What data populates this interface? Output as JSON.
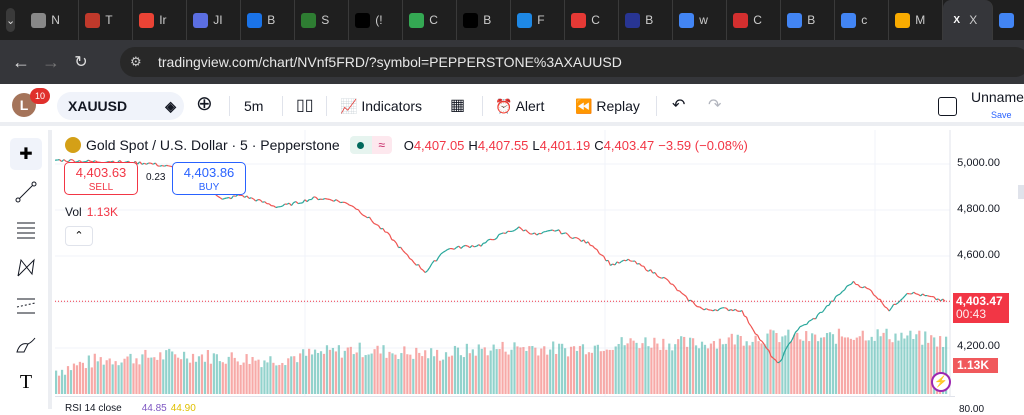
{
  "browser": {
    "tabs": [
      {
        "label": "N",
        "icon": "chrome-icon",
        "color": "#888"
      },
      {
        "label": "T",
        "icon": "t-icon",
        "color": "#c0392b"
      },
      {
        "label": "Ir",
        "icon": "gmail-icon",
        "color": "#ea4335"
      },
      {
        "label": "JI",
        "icon": "circle-icon",
        "color": "#5b6ee1"
      },
      {
        "label": "B",
        "icon": "b-icon",
        "color": "#1a73e8"
      },
      {
        "label": "S",
        "icon": "chart-icon",
        "color": "#2e7d32"
      },
      {
        "label": "(!",
        "icon": "x-icon",
        "color": "#000"
      },
      {
        "label": "C",
        "icon": "drive-icon",
        "color": "#34a853"
      },
      {
        "label": "B",
        "icon": "b-icon",
        "color": "#000"
      },
      {
        "label": "F",
        "icon": "globe-icon",
        "color": "#1e88e5"
      },
      {
        "label": "C",
        "icon": "a-icon",
        "color": "#e53935"
      },
      {
        "label": "B",
        "icon": "b-icon",
        "color": "#283593"
      },
      {
        "label": "w",
        "icon": "google-icon",
        "color": "#4285f4"
      },
      {
        "label": "C",
        "icon": "c-icon",
        "color": "#d32f2f"
      },
      {
        "label": "B",
        "icon": "google-icon",
        "color": "#4285f4"
      },
      {
        "label": "c",
        "icon": "google-icon",
        "color": "#4285f4"
      },
      {
        "label": "M",
        "icon": "analytics-icon",
        "color": "#f9ab00"
      },
      {
        "label": "X",
        "icon": "close-icon",
        "color": "#35363a",
        "active": true
      },
      {
        "label": "",
        "icon": "google-icon",
        "color": "#4285f4"
      }
    ],
    "url": "tradingview.com/chart/NVnf5FRD/?symbol=PEPPERSTONE%3AXAUUSD"
  },
  "toolbar": {
    "avatar": "L",
    "notifications": "10",
    "symbol": "XAUUSD",
    "interval": "5m",
    "indicators": "Indicators",
    "alert": "Alert",
    "replay": "Replay",
    "layout_name": "Unnamed",
    "save": "Save"
  },
  "legend": {
    "title": "Gold Spot / U.S. Dollar · 5 · Pepperstone",
    "o_label": "O",
    "o": "4,407.05",
    "h_label": "H",
    "h": "4,407.55",
    "l_label": "L",
    "l": "4,401.19",
    "c_label": "C",
    "c": "4,403.47",
    "change": "−3.59 (−0.08%)"
  },
  "trade": {
    "sell_price": "4,403.63",
    "sell": "SELL",
    "spread": "0.23",
    "buy_price": "4,403.86",
    "buy": "BUY"
  },
  "volume": {
    "label": "Vol",
    "value": "1.13K"
  },
  "price_scale": {
    "labels": [
      "5,000.00",
      "4,800.00",
      "4,600.00",
      "4,200.00"
    ],
    "last_price": "4,403.47",
    "countdown": "00:43",
    "volume_tag": "1.13K"
  },
  "rsi": {
    "label": "RSI 14 close",
    "v1": "44.85",
    "v2": "44.90",
    "tick": "80.00"
  },
  "colors": {
    "up": "#26a69a",
    "down": "#ef5350",
    "last_price": "#f23645"
  },
  "chart_data": {
    "type": "line",
    "title": "Gold Spot / U.S. Dollar · 5 · Pepperstone",
    "ylim": [
      4130,
      5020
    ],
    "yticks": [
      5000,
      4800,
      4600,
      4400,
      4200
    ],
    "close": [
      5017,
      5015,
      5010,
      5012,
      5006,
      5004,
      4990,
      4974,
      4930,
      4843,
      4865,
      4840,
      4813,
      4830,
      4852,
      4845,
      4822,
      4760,
      4691,
      4600,
      4530,
      4626,
      4640,
      4648,
      4690,
      4722,
      4691,
      4713,
      4680,
      4648,
      4561,
      4583,
      4540,
      4496,
      4420,
      4365,
      4370,
      4365,
      4240,
      4126,
      4278,
      4330,
      4409,
      4487,
      4450,
      4365,
      4443,
      4425,
      4403.47
    ],
    "volume_profile": [
      0.3,
      0.5,
      0.55,
      0.6,
      0.55,
      0.5,
      0.6,
      0.7,
      0.65,
      0.6,
      0.7,
      0.75,
      0.7,
      0.8,
      0.85,
      0.8,
      0.9,
      0.95,
      0.9,
      1.0,
      0.95,
      0.85
    ]
  }
}
